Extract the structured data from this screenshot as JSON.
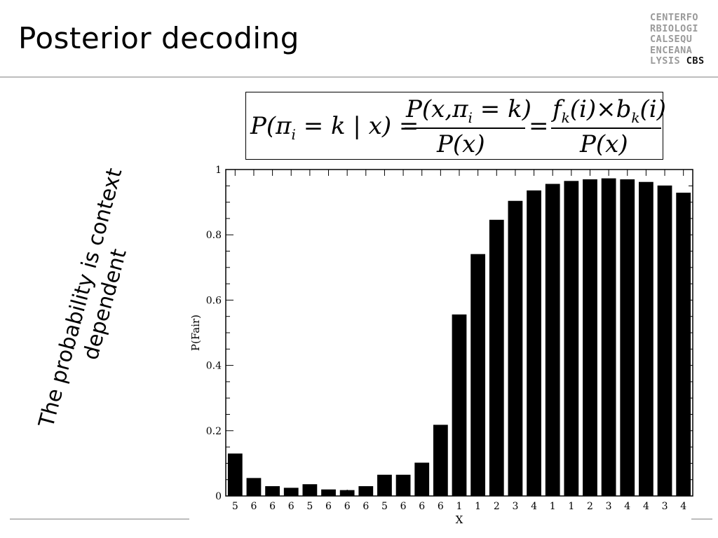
{
  "slide": {
    "title": "Posterior decoding",
    "side_note": "The probability is context dependent"
  },
  "logo": {
    "lines": [
      "CENTERFO",
      "RBIOLOGI",
      "CALSEQU",
      "ENCEANA",
      "LYSIS "
    ],
    "highlight": "CBS"
  },
  "formula": {
    "lhs": "P(π",
    "lhs_sub": "i",
    "lhs_rest": " = k | x) =",
    "frac1_num": "P(x,π",
    "frac1_num_sub": "i",
    "frac1_num_rest": " = k)",
    "frac1_den": "P(x)",
    "equals": "=",
    "frac2_num_a": "f",
    "frac2_num_a_sub": "k",
    "frac2_num_b": "(i)×b",
    "frac2_num_b_sub": "k",
    "frac2_num_c": "(i)",
    "frac2_den": "P(x)"
  },
  "chart_data": {
    "type": "bar",
    "xlabel": "X",
    "ylabel": "P(Fair)",
    "ylim": [
      0,
      1
    ],
    "yticks": [
      0,
      0.2,
      0.4,
      0.6,
      0.8,
      1
    ],
    "ytick_labels": [
      "0",
      "0.2",
      "0.4",
      "0.6",
      "0.8",
      "1"
    ],
    "categories": [
      "5",
      "6",
      "6",
      "6",
      "5",
      "6",
      "6",
      "6",
      "5",
      "6",
      "6",
      "6",
      "1",
      "1",
      "2",
      "3",
      "4",
      "1",
      "1",
      "2",
      "3",
      "4",
      "4",
      "3",
      "4"
    ],
    "values": [
      0.13,
      0.055,
      0.03,
      0.025,
      0.036,
      0.02,
      0.018,
      0.03,
      0.065,
      0.065,
      0.102,
      0.218,
      0.556,
      0.741,
      0.846,
      0.904,
      0.936,
      0.956,
      0.965,
      0.97,
      0.973,
      0.97,
      0.962,
      0.951,
      0.929
    ],
    "bar_color": "#000000",
    "grid": false
  }
}
